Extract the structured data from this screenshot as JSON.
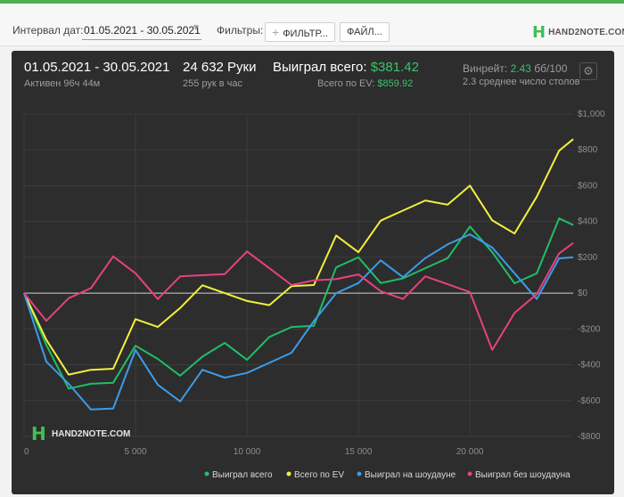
{
  "toolbar": {
    "date_interval_label": "Интервал дат:",
    "date_range": "01.05.2021 - 30.05.2021",
    "filters_label": "Фильтры:",
    "filter_button": "ФИЛЬТР...",
    "file_button": "ФАЙЛ..."
  },
  "brand": {
    "mark": "H",
    "name": "HAND2NOTE.COM"
  },
  "summary": {
    "period": "01.05.2021 - 30.05.2021",
    "active": "Активен 96ч 44м",
    "hands": "24 632 Руки",
    "hands_per_hour": "255 рук в час",
    "won_total_label": "Выиграл всего:",
    "won_total_value": "$381.42",
    "ev_total_label": "Всего по EV:",
    "ev_total_value": "$859.92",
    "winrate_label": "Винрейт:",
    "winrate_value": "2.43",
    "winrate_unit": "бб/100",
    "avg_tables": "2.3 среднее число столов"
  },
  "colors": {
    "won_total": "#1fbf66",
    "ev_total": "#f2f03c",
    "showdown": "#3d9be9",
    "non_showdown": "#e8417e",
    "accent": "#39c26a"
  },
  "chart_data": {
    "type": "line",
    "x_label": "",
    "y_label": "",
    "xlim": [
      0,
      24632
    ],
    "ylim": [
      -800,
      1000
    ],
    "x_ticks": [
      0,
      5000,
      10000,
      15000,
      20000
    ],
    "x_tick_labels": [
      "0",
      "5 000",
      "10 000",
      "15 000",
      "20 000"
    ],
    "y_ticks": [
      1000,
      800,
      600,
      400,
      200,
      0,
      -200,
      -400,
      -600,
      -800
    ],
    "y_tick_labels": [
      "$1,000",
      "$800",
      "$600",
      "$400",
      "$200",
      "$0",
      "-$200",
      "-$400",
      "-$600",
      "-$800"
    ],
    "grid": true,
    "legend_position": "bottom-right",
    "x": [
      0,
      1000,
      2000,
      3000,
      4000,
      5000,
      6000,
      7000,
      8000,
      9000,
      10000,
      11000,
      12000,
      13000,
      14000,
      15000,
      16000,
      17000,
      18000,
      19000,
      20000,
      21000,
      22000,
      23000,
      24000,
      24632
    ],
    "series": [
      {
        "name": "Выиграл всего",
        "color_key": "won_total",
        "values": [
          0,
          -300,
          -500,
          -550,
          -500,
          -250,
          -400,
          -450,
          -300,
          -300,
          -350,
          -300,
          -200,
          -150,
          100,
          200,
          100,
          50,
          150,
          250,
          350,
          250,
          0,
          100,
          450,
          380
        ]
      },
      {
        "name": "Всего по EV",
        "color_key": "ev_total",
        "values": [
          0,
          -250,
          -400,
          -450,
          -400,
          -200,
          -200,
          -50,
          0,
          0,
          0,
          -100,
          50,
          100,
          300,
          250,
          350,
          450,
          550,
          450,
          600,
          450,
          300,
          550,
          850,
          860
        ]
      },
      {
        "name": "Выиграл на шоудауне",
        "color_key": "showdown",
        "values": [
          0,
          -350,
          -550,
          -650,
          -600,
          -350,
          -500,
          -550,
          -450,
          -450,
          -500,
          -400,
          -300,
          -200,
          0,
          100,
          150,
          100,
          250,
          250,
          350,
          200,
          100,
          0,
          150,
          200
        ]
      },
      {
        "name": "Выиграл без шоудауна",
        "color_key": "non_showdown",
        "values": [
          0,
          -100,
          -50,
          50,
          150,
          100,
          0,
          50,
          100,
          150,
          200,
          150,
          100,
          50,
          100,
          50,
          0,
          0,
          50,
          50,
          50,
          -350,
          -100,
          50,
          200,
          280
        ]
      }
    ]
  }
}
